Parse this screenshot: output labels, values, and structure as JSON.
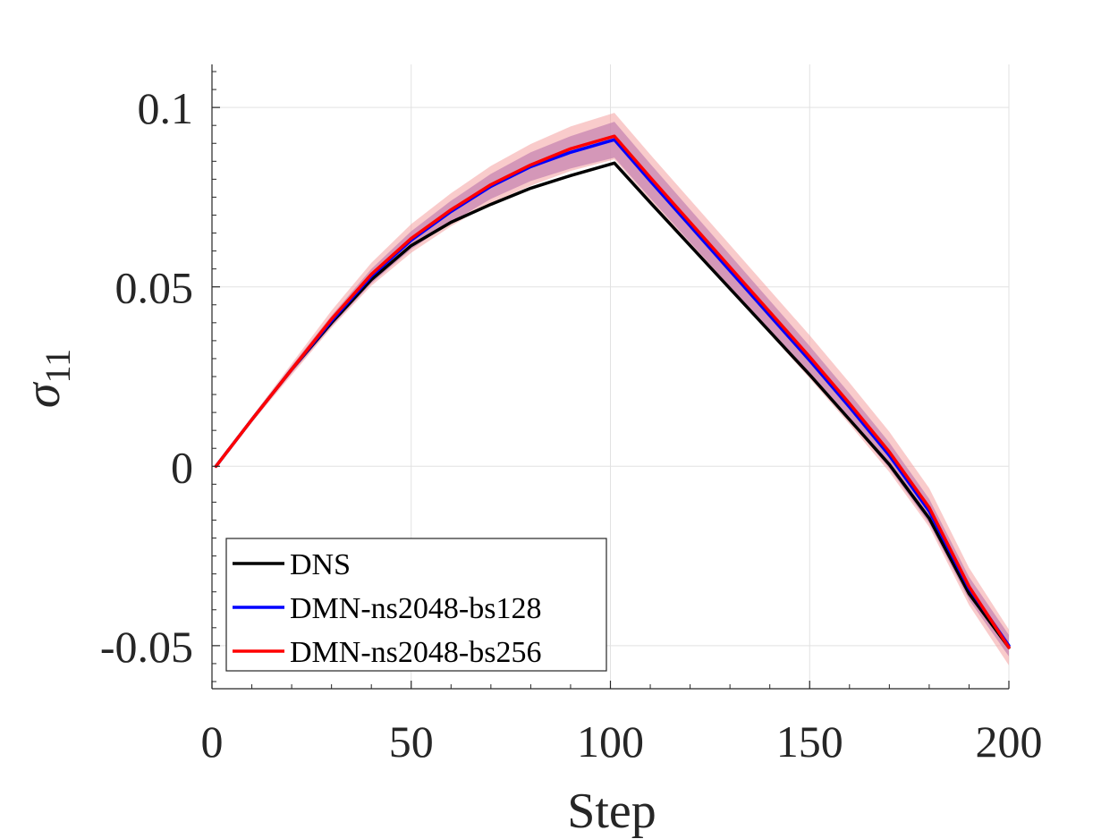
{
  "chart_data": {
    "type": "line",
    "xlabel": "Step",
    "ylabel_symbol": "σ",
    "ylabel_subscript": "11",
    "xlim": [
      0,
      200
    ],
    "ylim": [
      -0.062,
      0.112
    ],
    "xticks": [
      0,
      50,
      100,
      150,
      200
    ],
    "xtick_labels": [
      "0",
      "50",
      "100",
      "150",
      "200"
    ],
    "yticks": [
      -0.05,
      0,
      0.05,
      0.1
    ],
    "ytick_labels": [
      "-0.05",
      "0",
      "0.05",
      "0.1"
    ],
    "grid": true,
    "legend_position": "bottom-left",
    "series": [
      {
        "name": "DNS",
        "color": "#000000",
        "x": [
          1,
          10,
          20,
          30,
          40,
          50,
          60,
          70,
          80,
          90,
          101,
          110,
          120,
          130,
          140,
          150,
          160,
          170,
          180,
          190,
          200
        ],
        "y": [
          0,
          0.013,
          0.027,
          0.04,
          0.052,
          0.0615,
          0.068,
          0.073,
          0.0775,
          0.081,
          0.0845,
          0.0735,
          0.0615,
          0.0495,
          0.0375,
          0.0255,
          0.013,
          0.0005,
          -0.0145,
          -0.0355,
          -0.0505
        ]
      },
      {
        "name": "DMN-ns2048-bs128",
        "color": "#0000ff",
        "band_color": "#8a5cc4",
        "x": [
          1,
          10,
          20,
          30,
          40,
          50,
          60,
          70,
          80,
          90,
          101,
          110,
          120,
          130,
          140,
          150,
          160,
          170,
          180,
          190,
          200
        ],
        "y": [
          0,
          0.013,
          0.027,
          0.0405,
          0.053,
          0.063,
          0.071,
          0.078,
          0.0835,
          0.0875,
          0.091,
          0.0795,
          0.067,
          0.0545,
          0.042,
          0.0295,
          0.0165,
          0.003,
          -0.0125,
          -0.034,
          -0.05
        ],
        "band": [
          0,
          0.0005,
          0.001,
          0.0015,
          0.002,
          0.0025,
          0.003,
          0.0035,
          0.004,
          0.0045,
          0.005,
          0.0048,
          0.0046,
          0.0044,
          0.0042,
          0.004,
          0.0038,
          0.0036,
          0.0034,
          0.0032,
          0.003
        ]
      },
      {
        "name": "DMN-ns2048-bs256",
        "color": "#ff0000",
        "band_color": "#f4a0a0",
        "x": [
          1,
          10,
          20,
          30,
          40,
          50,
          60,
          70,
          80,
          90,
          101,
          110,
          120,
          130,
          140,
          150,
          160,
          170,
          180,
          190,
          200
        ],
        "y": [
          0,
          0.013,
          0.027,
          0.041,
          0.0535,
          0.0635,
          0.0715,
          0.0785,
          0.084,
          0.0885,
          0.092,
          0.0805,
          0.068,
          0.0555,
          0.043,
          0.0305,
          0.0175,
          0.004,
          -0.0115,
          -0.0335,
          -0.0505
        ],
        "band": [
          0,
          0.0008,
          0.0016,
          0.0024,
          0.0032,
          0.004,
          0.0046,
          0.0052,
          0.0058,
          0.0062,
          0.0065,
          0.0064,
          0.0063,
          0.0062,
          0.0061,
          0.006,
          0.0058,
          0.0056,
          0.0054,
          0.0052,
          0.005
        ]
      }
    ]
  }
}
